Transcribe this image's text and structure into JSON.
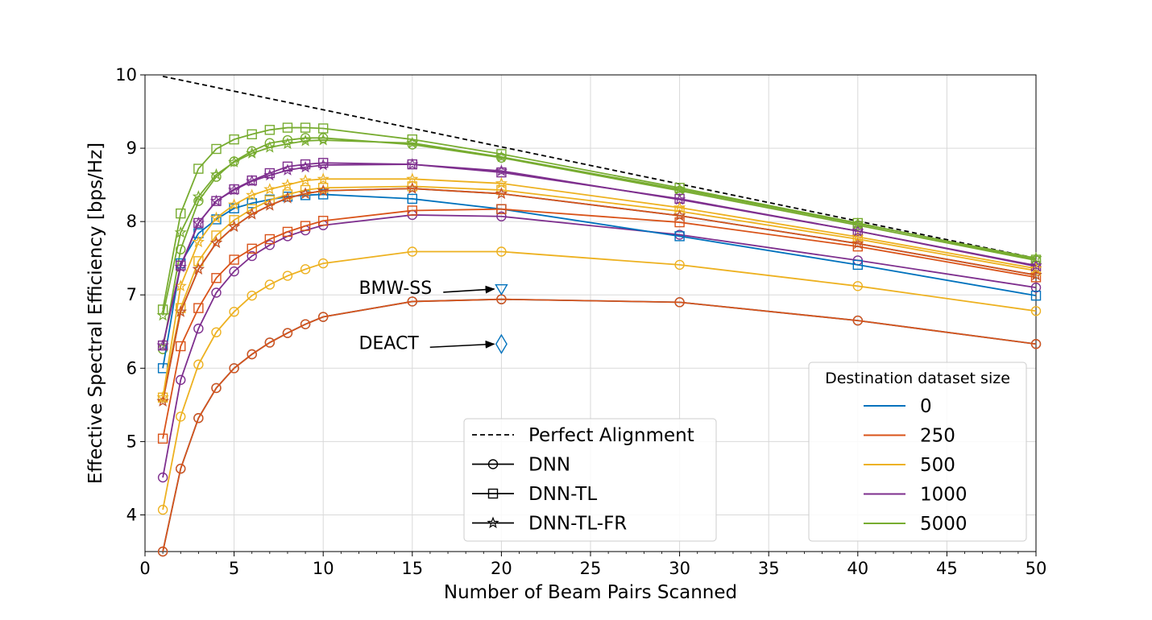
{
  "chart_data": {
    "type": "line",
    "title": "",
    "xlabel": "Number of Beam Pairs Scanned",
    "ylabel": "Effective Spectral Efficiency [bps/Hz]",
    "xlim": [
      0,
      50
    ],
    "ylim": [
      3.5,
      10
    ],
    "xticks": [
      0,
      5,
      10,
      15,
      20,
      25,
      30,
      35,
      40,
      45,
      50
    ],
    "yticks": [
      4,
      5,
      6,
      7,
      8,
      9,
      10
    ],
    "grid": true,
    "x": [
      1,
      2,
      3,
      4,
      5,
      6,
      7,
      8,
      9,
      10,
      15,
      20,
      30,
      40,
      50
    ],
    "colors": {
      "0": "#0072bd",
      "250": "#d95319",
      "500": "#edb120",
      "1000": "#7e2f8e",
      "5000": "#77ac30"
    },
    "perfect_alignment": {
      "name": "Perfect Alignment",
      "x": [
        1,
        50
      ],
      "y": [
        9.98,
        7.5
      ]
    },
    "series": [
      {
        "name": "DNN",
        "size": "0",
        "marker": "circle",
        "values": [
          3.5,
          4.63,
          5.32,
          5.73,
          6.0,
          6.19,
          6.35,
          6.48,
          6.6,
          6.7,
          6.91,
          6.94,
          6.9,
          6.65,
          6.33
        ]
      },
      {
        "name": "DNN",
        "size": "250",
        "marker": "circle",
        "values": [
          3.5,
          4.63,
          5.32,
          5.73,
          6.0,
          6.19,
          6.35,
          6.48,
          6.6,
          6.7,
          6.91,
          6.94,
          6.9,
          6.65,
          6.33
        ]
      },
      {
        "name": "DNN",
        "size": "500",
        "marker": "circle",
        "values": [
          4.07,
          5.34,
          6.05,
          6.49,
          6.77,
          6.99,
          7.14,
          7.26,
          7.35,
          7.43,
          7.59,
          7.59,
          7.41,
          7.12,
          6.78
        ]
      },
      {
        "name": "DNN",
        "size": "1000",
        "marker": "circle",
        "values": [
          4.51,
          5.84,
          6.54,
          7.03,
          7.32,
          7.53,
          7.68,
          7.8,
          7.88,
          7.95,
          8.09,
          8.07,
          7.82,
          7.47,
          7.1
        ]
      },
      {
        "name": "DNN",
        "size": "5000",
        "marker": "circle",
        "values": [
          6.26,
          7.62,
          8.28,
          8.61,
          8.82,
          8.96,
          9.07,
          9.11,
          9.14,
          9.14,
          9.05,
          8.87,
          8.42,
          7.95,
          7.47
        ]
      },
      {
        "name": "DNN-TL",
        "size": "0",
        "marker": "square",
        "values": [
          6.0,
          7.43,
          7.84,
          8.03,
          8.18,
          8.25,
          8.3,
          8.34,
          8.36,
          8.37,
          8.31,
          8.17,
          7.8,
          7.41,
          6.99
        ]
      },
      {
        "name": "DNN-TL",
        "size": "250",
        "marker": "square",
        "values": [
          5.04,
          6.3,
          6.82,
          7.23,
          7.48,
          7.63,
          7.76,
          7.86,
          7.94,
          8.01,
          8.15,
          8.17,
          7.99,
          7.66,
          7.24
        ]
      },
      {
        "name": "DNN-TL",
        "size": "500",
        "marker": "square",
        "values": [
          5.6,
          6.82,
          7.46,
          7.81,
          8.02,
          8.17,
          8.29,
          8.37,
          8.43,
          8.46,
          8.48,
          8.43,
          8.14,
          7.76,
          7.33
        ]
      },
      {
        "name": "DNN-TL",
        "size": "1000",
        "marker": "square",
        "values": [
          6.31,
          7.4,
          7.98,
          8.28,
          8.44,
          8.56,
          8.66,
          8.75,
          8.78,
          8.8,
          8.78,
          8.67,
          8.31,
          7.87,
          7.39
        ]
      },
      {
        "name": "DNN-TL",
        "size": "5000",
        "marker": "square",
        "values": [
          6.8,
          8.11,
          8.72,
          8.99,
          9.12,
          9.19,
          9.25,
          9.28,
          9.28,
          9.27,
          9.12,
          8.92,
          8.46,
          7.98,
          7.48
        ]
      },
      {
        "name": "DNN-TL-FR",
        "size": "0",
        "marker": "star",
        "values": [
          5.55,
          6.77,
          7.35,
          7.71,
          7.93,
          8.1,
          8.22,
          8.32,
          8.38,
          8.42,
          8.45,
          8.38,
          8.08,
          7.7,
          7.27
        ]
      },
      {
        "name": "DNN-TL-FR",
        "size": "250",
        "marker": "star",
        "values": [
          5.55,
          6.77,
          7.35,
          7.71,
          7.93,
          8.1,
          8.22,
          8.32,
          8.38,
          8.42,
          8.45,
          8.38,
          8.08,
          7.7,
          7.27
        ]
      },
      {
        "name": "DNN-TL-FR",
        "size": "500",
        "marker": "star",
        "values": [
          5.6,
          7.12,
          7.72,
          8.05,
          8.23,
          8.36,
          8.44,
          8.5,
          8.56,
          8.58,
          8.58,
          8.52,
          8.19,
          7.79,
          7.36
        ]
      },
      {
        "name": "DNN-TL-FR",
        "size": "1000",
        "marker": "star",
        "values": [
          6.31,
          7.38,
          7.98,
          8.28,
          8.43,
          8.55,
          8.63,
          8.7,
          8.74,
          8.77,
          8.78,
          8.69,
          8.3,
          7.87,
          7.4
        ]
      },
      {
        "name": "DNN-TL-FR",
        "size": "5000",
        "marker": "star",
        "values": [
          6.72,
          7.85,
          8.34,
          8.64,
          8.81,
          8.93,
          9.01,
          9.06,
          9.1,
          9.11,
          9.07,
          8.88,
          8.44,
          7.97,
          7.5
        ]
      }
    ],
    "points": [
      {
        "name": "BMW-SS",
        "x": 20,
        "y": 7.08,
        "marker": "triangle-down",
        "color": "#0072bd"
      },
      {
        "name": "DEACT",
        "x": 20,
        "y": 6.33,
        "marker": "diamond",
        "color": "#0072bd"
      }
    ],
    "annotations": [
      {
        "text": "BMW-SS",
        "text_x": 12.0,
        "text_y": 7.1,
        "arrow_to_x": 19.6,
        "arrow_to_y": 7.08
      },
      {
        "text": "DEACT",
        "text_x": 12.0,
        "text_y": 6.35,
        "arrow_to_x": 19.6,
        "arrow_to_y": 6.33
      }
    ],
    "legend_style": {
      "placement": "bottom-center",
      "entries": [
        {
          "label": "Perfect Alignment",
          "style": "dashed"
        },
        {
          "label": "DNN",
          "marker": "circle"
        },
        {
          "label": "DNN-TL",
          "marker": "square"
        },
        {
          "label": "DNN-TL-FR",
          "marker": "star"
        }
      ]
    },
    "legend_size": {
      "placement": "bottom-right",
      "title": "Destination dataset size",
      "entries": [
        {
          "label": "0",
          "color": "#0072bd"
        },
        {
          "label": "250",
          "color": "#d95319"
        },
        {
          "label": "500",
          "color": "#edb120"
        },
        {
          "label": "1000",
          "color": "#7e2f8e"
        },
        {
          "label": "5000",
          "color": "#77ac30"
        }
      ]
    }
  }
}
